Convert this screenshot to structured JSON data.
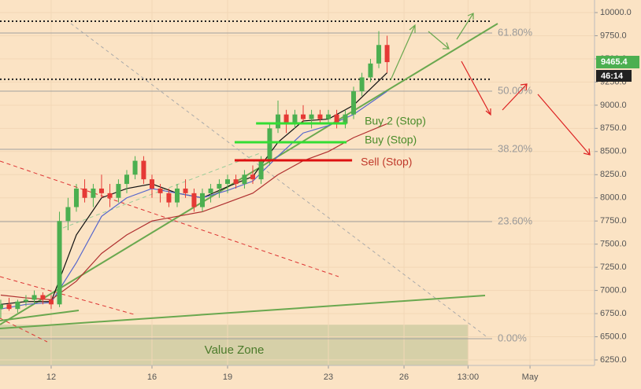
{
  "chart_data": {
    "type": "candlestick",
    "xlim": [
      9.97,
      33.56
    ],
    "ylim": [
      6190.7,
      10135.7
    ],
    "xticks": [
      12,
      16,
      19,
      23,
      26,
      {
        "value": 28.54,
        "label": "13:00"
      },
      {
        "value": 31,
        "label": "May"
      }
    ],
    "yticks": [
      {
        "value": 6250,
        "label": "6250.0"
      },
      {
        "value": 6500,
        "label": "6500.0"
      },
      {
        "value": 6750,
        "label": "6750.0"
      },
      {
        "value": 7000,
        "label": "7000.0"
      },
      {
        "value": 7250,
        "label": "7250.0"
      },
      {
        "value": 7500,
        "label": "7500.0"
      },
      {
        "value": 7750,
        "label": "7750.0"
      },
      {
        "value": 8000,
        "label": "8000.0"
      },
      {
        "value": 8250,
        "label": "8250.0"
      },
      {
        "value": 8500,
        "label": "8500.0"
      },
      {
        "value": 8750,
        "label": "8750.0"
      },
      {
        "value": 9000,
        "label": "9000.0"
      },
      {
        "value": 9250,
        "label": "9250.0"
      },
      {
        "value": 9500,
        "label": "9500.0"
      },
      {
        "value": 9750,
        "label": "9750.0"
      },
      {
        "value": 10000,
        "label": "10000.0"
      }
    ],
    "grid": true,
    "up_color": "#4caf50",
    "down_color": "#e53935",
    "candles": {
      "x": [
        10.0,
        10.33,
        10.67,
        11.0,
        11.33,
        11.67,
        12.0,
        12.33,
        12.67,
        13.0,
        13.33,
        13.67,
        14.0,
        14.33,
        14.67,
        15.0,
        15.33,
        15.67,
        16.0,
        16.33,
        16.67,
        17.0,
        17.33,
        17.67,
        18.0,
        18.33,
        18.67,
        19.0,
        19.33,
        19.67,
        20.0,
        20.33,
        20.67,
        21.0,
        21.33,
        21.67,
        22.0,
        22.33,
        22.67,
        23.0,
        23.33,
        23.67,
        24.0,
        24.33,
        24.67,
        25.0,
        25.33
      ],
      "open": [
        6800,
        6850,
        6800,
        6880,
        6900,
        6950,
        6900,
        6850,
        7750,
        7900,
        8100,
        8000,
        8100,
        8050,
        8000,
        8150,
        8250,
        8400,
        8200,
        8100,
        8050,
        7950,
        8100,
        8050,
        7900,
        8050,
        8100,
        8150,
        8200,
        8150,
        8250,
        8200,
        8400,
        8750,
        8900,
        8800,
        8900,
        8850,
        8900,
        8850,
        8900,
        8800,
        8900,
        9150,
        9300,
        9450,
        9650
      ],
      "high": [
        6900,
        6920,
        6900,
        6950,
        7000,
        6980,
        6950,
        7850,
        8000,
        8150,
        8200,
        8150,
        8250,
        8150,
        8200,
        8300,
        8450,
        8450,
        8250,
        8150,
        8100,
        8150,
        8200,
        8100,
        8100,
        8150,
        8200,
        8250,
        8250,
        8300,
        8350,
        8450,
        8800,
        9050,
        8950,
        8950,
        9000,
        8950,
        8950,
        8950,
        8950,
        8950,
        9200,
        9350,
        9500,
        9800,
        9750
      ],
      "low": [
        6700,
        6780,
        6760,
        6830,
        6850,
        6850,
        6800,
        6820,
        7650,
        7850,
        7950,
        7900,
        8000,
        7900,
        7950,
        8050,
        8200,
        8150,
        8000,
        7950,
        7900,
        7900,
        8000,
        7850,
        7850,
        7950,
        8000,
        8050,
        8100,
        8100,
        8150,
        8150,
        8350,
        8700,
        8700,
        8750,
        8800,
        8750,
        8800,
        8800,
        8750,
        8750,
        8850,
        9100,
        9250,
        9400,
        9350
      ],
      "close": [
        6850,
        6800,
        6880,
        6900,
        6950,
        6900,
        6850,
        7750,
        7900,
        8100,
        8000,
        8100,
        8050,
        8000,
        8150,
        8250,
        8400,
        8200,
        8100,
        8050,
        7950,
        8100,
        8050,
        7900,
        8050,
        8100,
        8150,
        8200,
        8150,
        8250,
        8200,
        8400,
        8750,
        8900,
        8800,
        8900,
        8850,
        8900,
        8850,
        8900,
        8800,
        8900,
        9150,
        9300,
        9450,
        9650,
        9465
      ]
    },
    "moving_averages": {
      "x": [
        10,
        11,
        12,
        13,
        14,
        15,
        16,
        17,
        18,
        19,
        20,
        21,
        22,
        23,
        24,
        25.33
      ],
      "series": [
        {
          "color": "#111111",
          "values": [
            6850,
            6880,
            6880,
            7600,
            8000,
            8100,
            8150,
            8050,
            8000,
            8120,
            8230,
            8600,
            8830,
            8850,
            9000,
            9350
          ]
        },
        {
          "color": "#5566cc",
          "values": [
            6800,
            6850,
            6870,
            7300,
            7800,
            8000,
            8100,
            8050,
            8000,
            8080,
            8180,
            8450,
            8700,
            8780,
            8900,
            9150
          ]
        },
        {
          "color": "#b03030",
          "values": [
            6950,
            6920,
            6900,
            7100,
            7400,
            7600,
            7750,
            7800,
            7850,
            7950,
            8050,
            8250,
            8400,
            8500,
            8650,
            8800
          ]
        }
      ]
    },
    "fib_levels": [
      {
        "price": 9779,
        "label": "61.80%"
      },
      {
        "price": 9152,
        "label": "50.00%"
      },
      {
        "price": 8524,
        "label": "38.20%"
      },
      {
        "price": 7743,
        "label": "23.60%"
      },
      {
        "price": 6479,
        "label": "0.00%"
      }
    ],
    "dotted_levels": [
      9907,
      9280
    ],
    "signals": [
      {
        "label": "Buy 2 (Stop)",
        "price": 8804,
        "from": 20.13,
        "to": 23.72,
        "color": "#33dd33",
        "text_color": "#4a8c2a"
      },
      {
        "label": "Buy (Stop)",
        "price": 8600,
        "from": 19.28,
        "to": 23.72,
        "color": "#33dd33",
        "text_color": "#4a8c2a"
      },
      {
        "label": "Sell (Stop)",
        "price": 8405,
        "from": 19.28,
        "to": 23.94,
        "color": "#dd1111",
        "text_color": "#c0392b"
      }
    ],
    "value_zone": {
      "label": "Value Zone",
      "top": 6630,
      "end": 28.56
    },
    "last_price": 9465.4,
    "countdown": "46:14"
  }
}
